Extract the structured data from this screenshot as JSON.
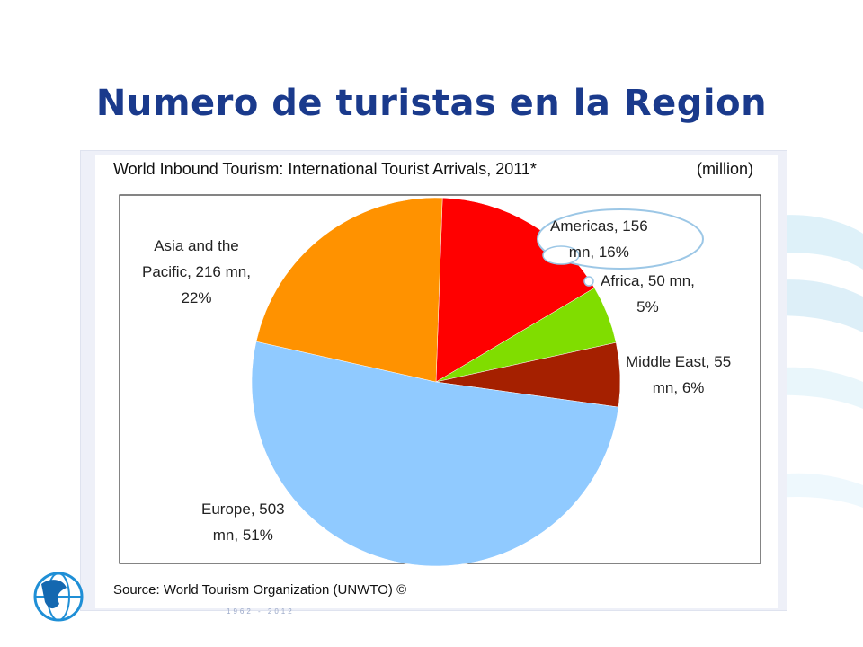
{
  "slide": {
    "title": "Numero de turistas en la Region"
  },
  "chart_data": {
    "type": "pie",
    "title": "World Inbound Tourism: International Tourist Arrivals, 2011*",
    "units": "(million)",
    "source": "Source: World Tourism Organization (UNWTO) ©",
    "slices": [
      {
        "name": "Americas",
        "value": 156,
        "percent": 16,
        "color": "#ff0000",
        "label_line1": "Americas, 156",
        "label_line2": "mn, 16%"
      },
      {
        "name": "Africa",
        "value": 50,
        "percent": 5,
        "color": "#80dd00",
        "label_line1": "Africa, 50 mn,",
        "label_line2": "5%"
      },
      {
        "name": "Middle East",
        "value": 55,
        "percent": 6,
        "color": "#a52000",
        "label_line1": "Middle East, 55",
        "label_line2": "mn, 6%"
      },
      {
        "name": "Europe",
        "value": 503,
        "percent": 51,
        "color": "#90caff",
        "label_line1": "Europe, 503",
        "label_line2": "mn, 51%"
      },
      {
        "name": "Asia and the Pacific",
        "value": 216,
        "percent": 22,
        "color": "#ff9200",
        "label_line1": "Asia and the",
        "label_line2": "Pacific, 216 mn,",
        "label_line3": "22%"
      }
    ]
  },
  "footer": {
    "years": "1962 - 2012"
  }
}
